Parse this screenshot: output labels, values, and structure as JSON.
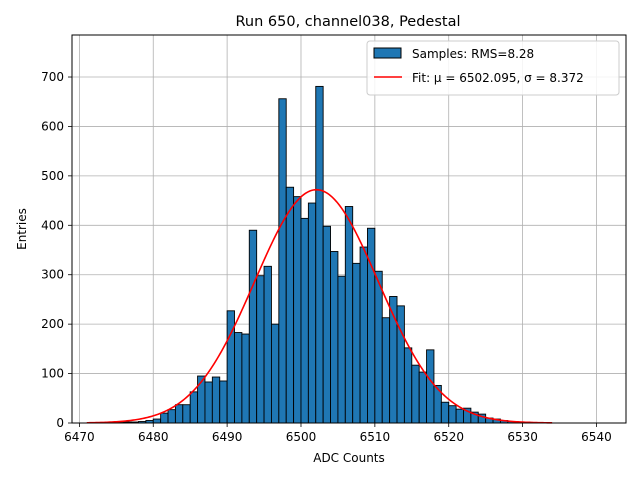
{
  "chart_data": {
    "type": "bar",
    "title": "Run 650, channel038, Pedestal",
    "xlabel": "ADC Counts",
    "ylabel": "Entries",
    "xlim": [
      6469,
      6544
    ],
    "ylim": [
      0,
      785
    ],
    "xticks": [
      6470,
      6480,
      6490,
      6500,
      6510,
      6520,
      6530,
      6540
    ],
    "yticks": [
      0,
      100,
      200,
      300,
      400,
      500,
      600,
      700
    ],
    "grid": true,
    "legend_position": "top-right",
    "bin_width": 1,
    "histogram": {
      "name": "Samples: RMS=8.28",
      "color": "#1f77b4",
      "edgecolor": "#000000",
      "bins": [
        [
          6473,
          1
        ],
        [
          6474,
          1
        ],
        [
          6475,
          1
        ],
        [
          6476,
          2
        ],
        [
          6477,
          2
        ],
        [
          6478,
          3
        ],
        [
          6479,
          5
        ],
        [
          6480,
          8
        ],
        [
          6481,
          20
        ],
        [
          6482,
          27
        ],
        [
          6483,
          37
        ],
        [
          6484,
          37
        ],
        [
          6485,
          63
        ],
        [
          6486,
          95
        ],
        [
          6487,
          83
        ],
        [
          6488,
          93
        ],
        [
          6489,
          85
        ],
        [
          6490,
          227
        ],
        [
          6491,
          183
        ],
        [
          6492,
          180
        ],
        [
          6493,
          390
        ],
        [
          6494,
          298
        ],
        [
          6495,
          317
        ],
        [
          6496,
          200
        ],
        [
          6497,
          656
        ],
        [
          6498,
          477
        ],
        [
          6499,
          458
        ],
        [
          6500,
          414
        ],
        [
          6501,
          445
        ],
        [
          6502,
          681
        ],
        [
          6503,
          398
        ],
        [
          6504,
          347
        ],
        [
          6505,
          297
        ],
        [
          6506,
          438
        ],
        [
          6507,
          323
        ],
        [
          6508,
          356
        ],
        [
          6509,
          394
        ],
        [
          6510,
          307
        ],
        [
          6511,
          213
        ],
        [
          6512,
          256
        ],
        [
          6513,
          237
        ],
        [
          6514,
          152
        ],
        [
          6515,
          117
        ],
        [
          6516,
          103
        ],
        [
          6517,
          148
        ],
        [
          6518,
          76
        ],
        [
          6519,
          42
        ],
        [
          6520,
          35
        ],
        [
          6521,
          28
        ],
        [
          6522,
          30
        ],
        [
          6523,
          22
        ],
        [
          6524,
          18
        ],
        [
          6525,
          10
        ],
        [
          6526,
          8
        ],
        [
          6527,
          5
        ],
        [
          6528,
          3
        ],
        [
          6529,
          2
        ],
        [
          6530,
          2
        ],
        [
          6531,
          1
        ],
        [
          6532,
          1
        ]
      ]
    },
    "fit": {
      "name": "Fit: μ = 6502.095, σ = 8.372",
      "color": "#ff0000",
      "mu": 6502.095,
      "sigma": 8.372,
      "amplitude": 472,
      "x_range": [
        6471,
        6534
      ]
    }
  }
}
